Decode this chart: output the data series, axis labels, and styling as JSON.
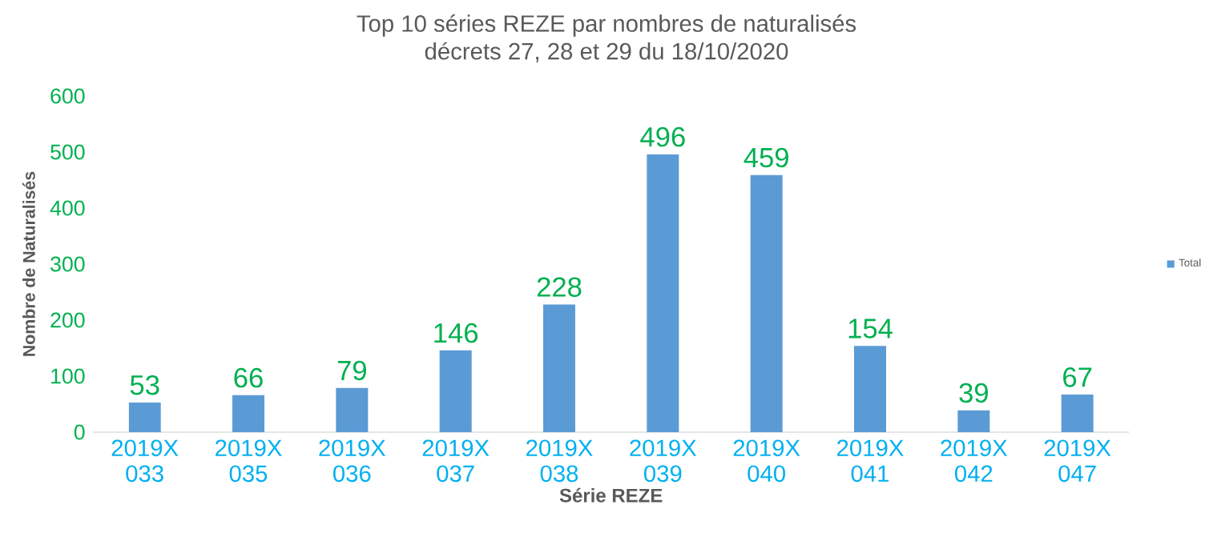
{
  "chart_data": {
    "type": "bar",
    "title": "Top 10 séries REZE par nombres de naturalisés",
    "subtitle": "décrets 27, 28 et 29 du 18/10/2020",
    "xlabel": "Série REZE",
    "ylabel": "Nombre de Naturalisés",
    "categories": [
      "2019X 033",
      "2019X 035",
      "2019X 036",
      "2019X 037",
      "2019X 038",
      "2019X 039",
      "2019X 040",
      "2019X 041",
      "2019X 042",
      "2019X 047"
    ],
    "series": [
      {
        "name": "Total",
        "color": "#5b9bd5",
        "values": [
          53,
          66,
          79,
          146,
          228,
          496,
          459,
          154,
          39,
          67
        ]
      }
    ],
    "ylim": [
      0,
      600
    ],
    "yticks": [
      0,
      100,
      200,
      300,
      400,
      500,
      600
    ],
    "legend": "right",
    "data_labels": true
  }
}
